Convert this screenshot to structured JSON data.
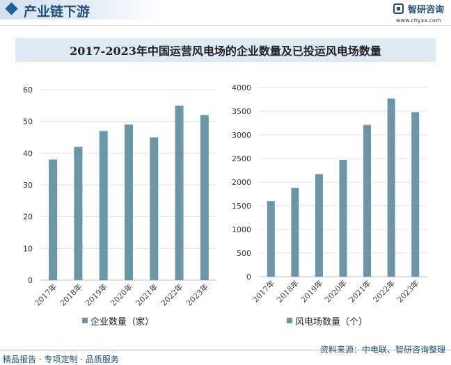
{
  "header": {
    "section_title": "产业链下游",
    "brand_name": "智研咨询",
    "brand_url": "www.chyxx.com"
  },
  "footer": {
    "left_text": "精品报告 · 专项定制 · 品质服务",
    "source_text": "资料来源：中电联、智研咨询整理"
  },
  "colors": {
    "bar": "#6b96a8",
    "accent": "#1f4e79",
    "title_bg": "#dde9f3"
  },
  "chart_data": [
    {
      "type": "bar",
      "title": "2017-2023年中国运营风电场的企业数量及已投运风电场数量",
      "categories": [
        "2017年",
        "2018年",
        "2019年",
        "2020年",
        "2021年",
        "2022年",
        "2023年"
      ],
      "series": [
        {
          "name": "企业数量（家）",
          "values": [
            38,
            42,
            47,
            49,
            45,
            55,
            52
          ]
        }
      ],
      "ylim": [
        0,
        60
      ],
      "yticks": [
        0,
        10,
        20,
        30,
        40,
        50,
        60
      ],
      "grid": true,
      "legend": "bottom"
    },
    {
      "type": "bar",
      "categories": [
        "2017年",
        "2018年",
        "2019年",
        "2020年",
        "2021年",
        "2022年",
        "2023年"
      ],
      "series": [
        {
          "name": "风电场数量（个）",
          "values": [
            1600,
            1880,
            2170,
            2470,
            3210,
            3770,
            3480
          ]
        }
      ],
      "ylim": [
        0,
        4000
      ],
      "yticks": [
        0,
        500,
        1000,
        1500,
        2000,
        2500,
        3000,
        3500,
        4000
      ],
      "grid": true,
      "legend": "bottom"
    }
  ]
}
